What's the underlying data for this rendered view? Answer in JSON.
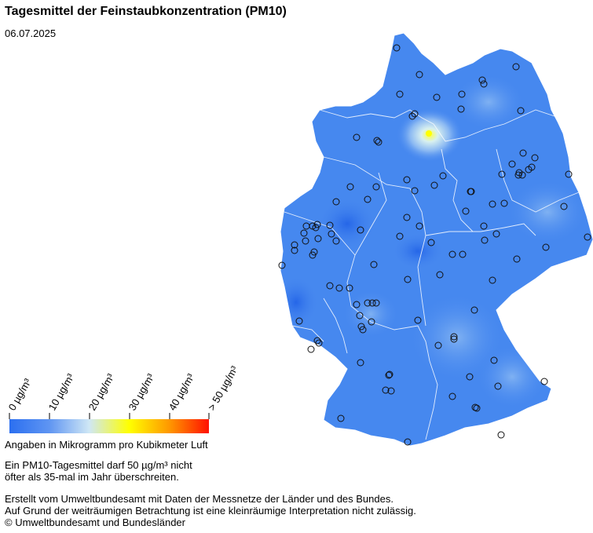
{
  "title": "Tagesmittel der Feinstaubkonzentration (PM10)",
  "date": "06.07.2025",
  "legend": {
    "ticks": [
      "0 µg/m³",
      "10 µg/m³",
      "20 µg/m³",
      "30 µg/m³",
      "40 µg/m³",
      "> 50 µg/m³"
    ],
    "caption": "Angaben in Mikrogramm pro Kubikmeter Luft",
    "colors": [
      "#2b6ff0",
      "#5f95f2",
      "#cfe7f5",
      "#ffff00",
      "#ff9900",
      "#ff1100"
    ]
  },
  "note": [
    "Ein PM10-Tagesmittel darf 50 µg/m³ nicht",
    "öfter als 35-mal im Jahr überschreiten."
  ],
  "credits": [
    "Erstellt vom Umweltbundesamt mit Daten der Messnetze der Länder und des Bundes.",
    "Auf Grund der weiträumigen Betrachtung ist eine kleinräumige Interpretation nicht zulässig.",
    "© Umweltbundesamt und Bundesländer"
  ],
  "map": {
    "base_color": "#3f82ee",
    "hotspot_color": "#ffff66",
    "hotspot_location": "Hamburg area",
    "stations_count": 120
  }
}
